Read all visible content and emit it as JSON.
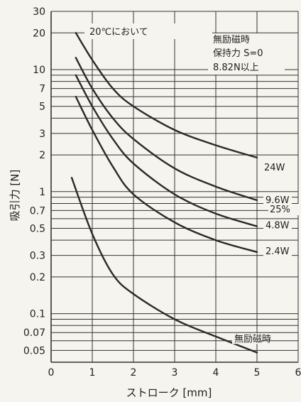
{
  "chart_data": {
    "type": "line",
    "title": "",
    "xlabel": "ストローク [mm]",
    "ylabel": "吸引力 [N]",
    "xlim": [
      0,
      6
    ],
    "ylim": [
      0.04,
      30
    ],
    "y_scale": "log",
    "x_ticks": [
      "0",
      "1",
      "2",
      "3",
      "4",
      "5",
      "6"
    ],
    "y_ticks": [
      "30",
      "20",
      "10",
      "7",
      "5",
      "3",
      "2",
      "1",
      "0.7",
      "0.5",
      "0.3",
      "0.2",
      "0.1",
      "0.07",
      "0.05"
    ],
    "grid": "horizontal",
    "series": [
      {
        "name": "24W",
        "x": [
          0.6,
          1,
          1.5,
          2,
          3,
          4,
          5
        ],
        "y": [
          20,
          12,
          7,
          5,
          3.2,
          2.4,
          1.9
        ]
      },
      {
        "name": "9.6W",
        "x": [
          0.6,
          1,
          1.5,
          2,
          3,
          4,
          5
        ],
        "y": [
          12.5,
          7,
          4,
          2.7,
          1.55,
          1.1,
          0.85
        ]
      },
      {
        "name": "4.8W",
        "x": [
          0.6,
          1,
          1.5,
          2,
          3,
          4,
          5
        ],
        "y": [
          9,
          5,
          2.7,
          1.7,
          0.95,
          0.66,
          0.52
        ]
      },
      {
        "name": "2.4W",
        "x": [
          0.6,
          1,
          1.5,
          2,
          3,
          4,
          5
        ],
        "y": [
          6,
          3.2,
          1.6,
          0.95,
          0.56,
          0.4,
          0.32
        ]
      },
      {
        "name": "無励磁時",
        "x": [
          0.5,
          1,
          1.5,
          2,
          3,
          4,
          5
        ],
        "y": [
          1.3,
          0.45,
          0.21,
          0.145,
          0.09,
          0.065,
          0.048
        ]
      }
    ],
    "annotations": {
      "condition": "20℃において",
      "note_line1": "無励磁時",
      "note_line2": "保持力 S=0",
      "note_line3": "8.82N以上",
      "duty": "25%"
    }
  }
}
